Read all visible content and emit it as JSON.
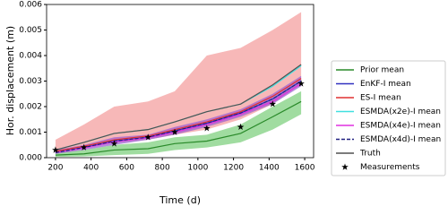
{
  "chart_data": {
    "type": "line",
    "xlabel": "Time (d)",
    "ylabel": "Hor. displacement (m)",
    "x": [
      200,
      360,
      530,
      720,
      870,
      1050,
      1240,
      1420,
      1580
    ],
    "xlim": [
      150,
      1650
    ],
    "xticks": [
      200,
      400,
      600,
      800,
      1000,
      1200,
      1400,
      1600
    ],
    "ylim": [
      0,
      0.006
    ],
    "yticks": [
      {
        "value": 0,
        "label": "0.000"
      },
      {
        "value": 0.001,
        "label": "0.001"
      },
      {
        "value": 0.002,
        "label": "0.002"
      },
      {
        "value": 0.003,
        "label": "0.003"
      },
      {
        "value": 0.004,
        "label": "0.004"
      },
      {
        "value": 0.005,
        "label": "0.005"
      },
      {
        "value": 0.006,
        "label": "0.006"
      }
    ],
    "bands": [
      {
        "color": "#f4a0a0",
        "upper": [
          0.0007,
          0.0013,
          0.002,
          0.0022,
          0.0026,
          0.004,
          0.0043,
          0.005,
          0.0057
        ],
        "lower": [
          0.0002,
          0.0004,
          0.0006,
          0.0007,
          0.0009,
          0.0011,
          0.0015,
          0.0021,
          0.0029
        ]
      },
      {
        "color": "#80d080",
        "upper": [
          0.0002,
          0.0003,
          0.0005,
          0.0006,
          0.0008,
          0.0009,
          0.0013,
          0.002,
          0.0026
        ],
        "lower": [
          3e-05,
          5e-05,
          0.0001,
          0.00015,
          0.0003,
          0.0004,
          0.0006,
          0.0011,
          0.0017
        ]
      },
      {
        "color": "#a060d0",
        "upper": [
          0.0003,
          0.0005,
          0.0008,
          0.0009,
          0.0012,
          0.0015,
          0.0019,
          0.0025,
          0.0032
        ],
        "lower": [
          0.00015,
          0.0003,
          0.0005,
          0.0007,
          0.0009,
          0.0012,
          0.0016,
          0.0021,
          0.0028
        ]
      }
    ],
    "series": [
      {
        "name": "Prior mean",
        "color": "#2a8a2a",
        "style": "solid",
        "values": [
          0.0001,
          0.00015,
          0.0003,
          0.00035,
          0.00055,
          0.00065,
          0.00095,
          0.0016,
          0.0022
        ]
      },
      {
        "name": "EnKF-I mean",
        "color": "#3030c0",
        "style": "solid",
        "values": [
          0.0002,
          0.0004,
          0.00065,
          0.0008,
          0.00105,
          0.00135,
          0.00175,
          0.0023,
          0.003
        ]
      },
      {
        "name": "ES-I mean",
        "color": "#e03030",
        "style": "solid",
        "values": [
          0.00025,
          0.00045,
          0.0007,
          0.00085,
          0.0011,
          0.0014,
          0.0018,
          0.0024,
          0.0031
        ]
      },
      {
        "name": "ESMDA(x2e)-I mean",
        "color": "#40e0e0",
        "style": "solid",
        "values": [
          0.0003,
          0.0006,
          0.00095,
          0.0011,
          0.0014,
          0.0018,
          0.0021,
          0.0028,
          0.0036
        ]
      },
      {
        "name": "ESMDA(x4e)-I mean",
        "color": "#e030e0",
        "style": "solid",
        "values": [
          0.0002,
          0.00038,
          0.00062,
          0.00078,
          0.001,
          0.0013,
          0.0017,
          0.0022,
          0.0029
        ]
      },
      {
        "name": "ESMDA(x4d)-I mean",
        "color": "#202080",
        "style": "dashed",
        "values": [
          0.0002,
          0.0004,
          0.00065,
          0.0008,
          0.00105,
          0.00135,
          0.00175,
          0.0023,
          0.003
        ]
      },
      {
        "name": "Truth",
        "color": "#505050",
        "style": "solid",
        "values": [
          0.0003,
          0.0006,
          0.00095,
          0.0011,
          0.0014,
          0.0018,
          0.0021,
          0.00285,
          0.00365
        ]
      },
      {
        "name": "Measurements",
        "color": "#000000",
        "style": "star",
        "values": [
          0.0003,
          0.0004,
          0.00055,
          0.0008,
          0.001,
          0.00115,
          0.0012,
          0.0021,
          0.0029
        ]
      }
    ]
  }
}
